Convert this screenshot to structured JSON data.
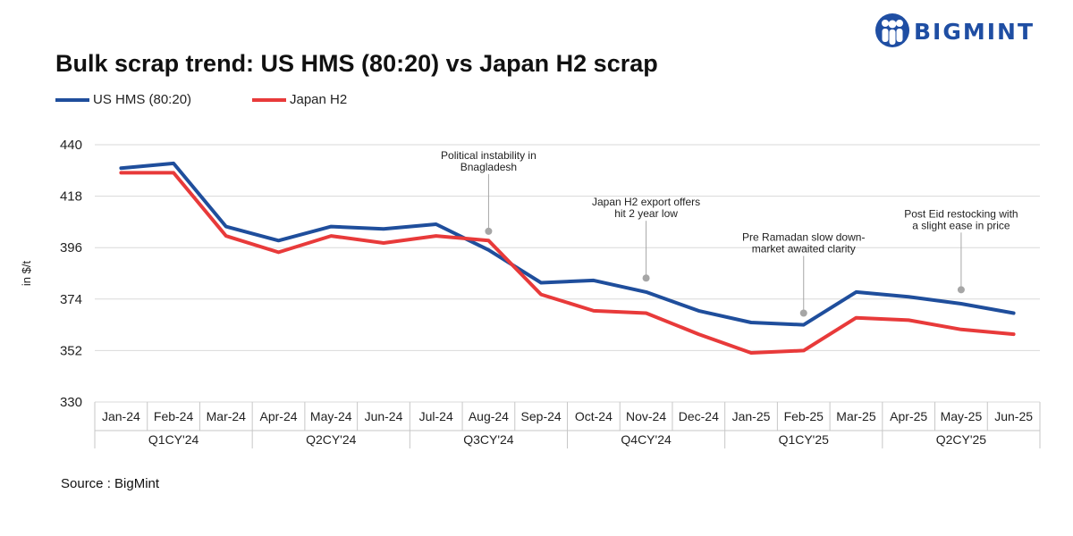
{
  "header": {
    "title": "Bulk scrap trend: US HMS (80:20) vs Japan H2 scrap",
    "logo_text": "BIGMINT"
  },
  "source": "Source : BigMint",
  "chart_data": {
    "type": "line",
    "title": "Bulk scrap trend: US HMS (80:20) vs Japan H2 scrap",
    "ylabel": "in $/t",
    "xlabel": "",
    "ylim": [
      330,
      440
    ],
    "yticks": [
      330,
      352,
      374,
      396,
      418,
      440
    ],
    "grid": true,
    "legend_position": "top-left",
    "categories": [
      "Jan-24",
      "Feb-24",
      "Mar-24",
      "Apr-24",
      "May-24",
      "Jun-24",
      "Jul-24",
      "Aug-24",
      "Sep-24",
      "Oct-24",
      "Nov-24",
      "Dec-24",
      "Jan-25",
      "Feb-25",
      "Mar-25",
      "Apr-25",
      "May-25",
      "Jun-25"
    ],
    "quarters": [
      {
        "label": "Q1CY'24",
        "span": 3
      },
      {
        "label": "Q2CY'24",
        "span": 3
      },
      {
        "label": "Q3CY'24",
        "span": 3
      },
      {
        "label": "Q4CY'24",
        "span": 3
      },
      {
        "label": "Q1CY'25",
        "span": 3
      },
      {
        "label": "Q2CY'25",
        "span": 3
      }
    ],
    "series": [
      {
        "name": "US HMS (80:20)",
        "color": "#1f4e9c",
        "values": [
          430,
          432,
          405,
          399,
          405,
          404,
          406,
          395,
          381,
          382,
          377,
          369,
          364,
          363,
          377,
          375,
          372,
          368
        ]
      },
      {
        "name": "Japan H2",
        "color": "#e83a3a",
        "values": [
          428,
          428,
          401,
          394,
          401,
          398,
          401,
          399,
          376,
          369,
          368,
          359,
          351,
          352,
          366,
          365,
          361,
          359
        ]
      }
    ],
    "annotations": [
      {
        "text_lines": [
          "Political instability in",
          "Bnagladesh"
        ],
        "x_index": 7,
        "y": 403
      },
      {
        "text_lines": [
          "Japan H2 export offers",
          "hit 2 year low"
        ],
        "x_index": 10,
        "y": 383
      },
      {
        "text_lines": [
          "Pre Ramadan slow down-",
          "market awaited clarity"
        ],
        "x_index": 13,
        "y": 368
      },
      {
        "text_lines": [
          "Post Eid restocking with",
          "a slight ease in price"
        ],
        "x_index": 16,
        "y": 378
      }
    ]
  }
}
